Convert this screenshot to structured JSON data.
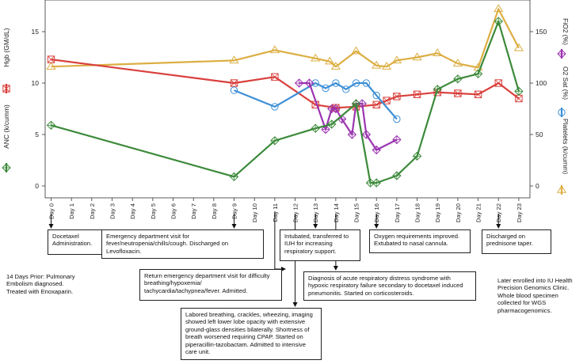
{
  "chart_data": {
    "type": "line",
    "categories": [
      "Day 0",
      "Day 1",
      "Day 2",
      "Day 3",
      "Day 4",
      "Day 5",
      "Day 6",
      "Day 7",
      "Day 8",
      "Day 9",
      "Day 10",
      "Day 11",
      "Day 12",
      "Day 13",
      "Day 14",
      "Day 15",
      "Day 16",
      "Day 17",
      "Day 18",
      "Day 19",
      "Day 20",
      "Day 21",
      "Day 22",
      "Day 23"
    ],
    "left_axis": {
      "ticks": [
        "0",
        "5",
        "10",
        "15"
      ],
      "ylim": [
        0,
        18
      ]
    },
    "right_axis": {
      "ticks": [
        "0",
        "50",
        "100",
        "150"
      ],
      "ylim": [
        0,
        180
      ]
    },
    "legend_labels": {
      "hgb": "Hgb (GM/dL)",
      "anc": "ANC (k/cumm)",
      "fio2": "FiO2 (%)",
      "o2": "O2 Sat (%)",
      "plt": "Platelets (k/cumm)"
    },
    "colors": {
      "hgb": "#d9403d",
      "anc": "#3c8a3a",
      "fio2": "#9a35b0",
      "o2": "#3d8fd6",
      "plt": "#dcae42"
    },
    "series": [
      {
        "key": "plt",
        "name": "Platelets (k/cumm)",
        "axis": "right",
        "marker": "triangle",
        "x": [
          0,
          9,
          11,
          13,
          13.7,
          14,
          15,
          16,
          16.5,
          17,
          18,
          19,
          20,
          21,
          22,
          23
        ],
        "y": [
          116,
          122,
          132,
          124,
          121,
          116,
          131,
          117,
          116,
          122,
          125,
          129,
          119,
          115,
          172,
          134
        ]
      },
      {
        "key": "hgb",
        "name": "Hgb (GM/dL)",
        "axis": "left",
        "marker": "square",
        "x": [
          0,
          9,
          11,
          13,
          14,
          15,
          16,
          16.5,
          17,
          18,
          19,
          20,
          21,
          22,
          23
        ],
        "y": [
          12.3,
          10.0,
          10.6,
          7.9,
          7.6,
          7.7,
          7.9,
          8.3,
          8.7,
          8.9,
          9.1,
          9.0,
          8.9,
          10.0,
          8.5
        ]
      },
      {
        "key": "o2",
        "name": "O2 Sat (%)",
        "axis": "right",
        "marker": "circle",
        "x": [
          9,
          11,
          13,
          13.5,
          14,
          14.5,
          15,
          15.5,
          16,
          17
        ],
        "y": [
          93,
          77,
          100,
          95,
          100,
          94,
          100,
          100,
          88,
          65
        ]
      },
      {
        "key": "fio2",
        "name": "FiO2 (%)",
        "axis": "right",
        "marker": "diamond",
        "x": [
          12.2,
          12.7,
          13.5,
          13.8,
          14,
          14.3,
          14.8,
          15,
          15.3,
          15.5,
          16,
          17
        ],
        "y": [
          100,
          100,
          55,
          75,
          75,
          65,
          50,
          80,
          80,
          50,
          35,
          45
        ]
      },
      {
        "key": "anc",
        "name": "ANC (k/cumm)",
        "axis": "left",
        "marker": "diamond",
        "x": [
          0,
          9,
          11,
          13,
          13.8,
          15,
          15.7,
          16,
          17,
          18,
          19,
          20,
          21,
          22,
          23
        ],
        "y": [
          5.9,
          0.9,
          4.4,
          5.6,
          6.0,
          8.0,
          0.3,
          0.3,
          1.0,
          2.9,
          9.4,
          10.4,
          10.9,
          16.0,
          9.2
        ]
      }
    ]
  },
  "annotations": [
    {
      "key": "a0",
      "day": 0,
      "text": "Docetaxel Administration."
    },
    {
      "key": "a9",
      "day": 9,
      "text": "Emergency department visit for fever/neutropenia/chills/cough.  Discharged on Levofloxacin."
    },
    {
      "key": "a11",
      "day": 11,
      "text": "Return emergency department visit for difficulty breathing/hypoxemia/ tachycardia/tachypnea/fever.  Admitted."
    },
    {
      "key": "a12",
      "day": 12,
      "text": "Labored breathing, crackles, wheezing, imaging showed left lower lobe opacity with extensive ground-glass densities bilaterally. Shortness of breath worsened requiring CPAP. Started on piperacillin-tazobactam. Admitted to intensive care unit."
    },
    {
      "key": "a13",
      "day": 13,
      "text": "Intubated, transferred to IUH for increasing respiratory support."
    },
    {
      "key": "a14",
      "day": 14,
      "text": "Diagnosis of acute respiratory distress syndrome with hypoxic respiratory failure secondary to docetaxel induced pneumonitis. Started on corticosteroids."
    },
    {
      "key": "a16",
      "day": 16,
      "text": "Oxygen requirements improved.  Extubated to nasal cannula."
    },
    {
      "key": "a22",
      "day": 22,
      "text": "Discharged on prednisone taper."
    }
  ],
  "notes": {
    "prior": "14 Days Prior: Pulmonary Embolism diagnosed. Treated with Enoxaparin.",
    "later": "Later enrolled into IU Health Precision Genomics Clinic. Whole blood specimen collected for WGS pharmacogenomics."
  }
}
